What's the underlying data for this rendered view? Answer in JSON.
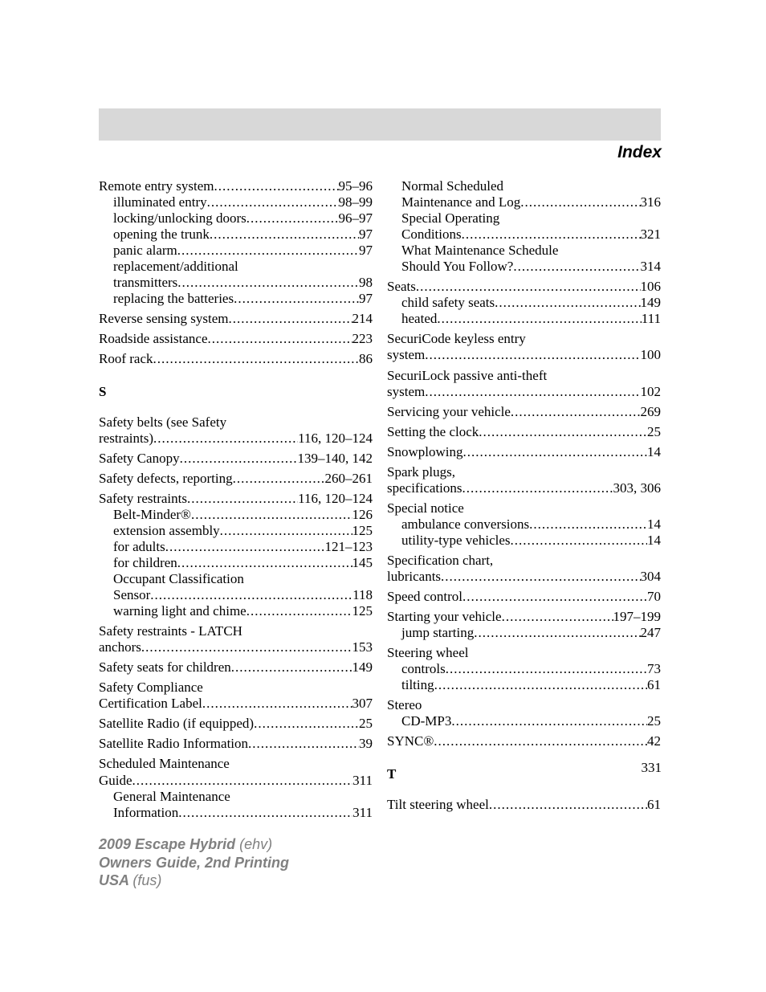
{
  "title": "Index",
  "page_number": "331",
  "footer": {
    "line1_bold": "2009 Escape Hybrid ",
    "line1_rest": "(ehv)",
    "line2": "Owners Guide, 2nd Printing",
    "line3_bold": "USA ",
    "line3_rest": "(fus)"
  },
  "left_col": [
    {
      "type": "entry",
      "block": true,
      "lines": [
        {
          "txt": "Remote entry system ",
          "pg": "95–96",
          "sub": false
        },
        {
          "txt": "illuminated entry ",
          "pg": "98–99",
          "sub": true
        },
        {
          "txt": "locking/unlocking doors ",
          "pg": "96–97",
          "sub": true
        },
        {
          "txt": "opening the trunk ",
          "pg": "97",
          "sub": true
        },
        {
          "txt": "panic alarm ",
          "pg": "97",
          "sub": true
        },
        {
          "txt": "replacement/additional",
          "nopg": true,
          "sub": true
        },
        {
          "txt": "transmitters ",
          "pg": "98",
          "sub": true
        },
        {
          "txt": "replacing the batteries ",
          "pg": "97",
          "sub": true
        }
      ]
    },
    {
      "type": "entry",
      "block": true,
      "lines": [
        {
          "txt": "Reverse sensing system ",
          "pg": "214",
          "sub": false
        }
      ]
    },
    {
      "type": "entry",
      "block": true,
      "lines": [
        {
          "txt": "Roadside assistance ",
          "pg": "223",
          "sub": false
        }
      ]
    },
    {
      "type": "entry",
      "block": true,
      "lines": [
        {
          "txt": "Roof rack ",
          "pg": "86",
          "sub": false
        }
      ]
    },
    {
      "type": "section",
      "letter": "S"
    },
    {
      "type": "entry",
      "block": true,
      "lines": [
        {
          "txt": "Safety belts (see Safety",
          "nopg": true,
          "sub": false
        },
        {
          "txt": "restraints) ",
          "pg": "116, 120–124",
          "sub": false
        }
      ]
    },
    {
      "type": "entry",
      "block": true,
      "lines": [
        {
          "txt": "Safety Canopy ",
          "pg": "139–140, 142",
          "sub": false
        }
      ]
    },
    {
      "type": "entry",
      "block": true,
      "lines": [
        {
          "txt": "Safety defects, reporting ",
          "pg": "260–261",
          "sub": false,
          "tight": true
        }
      ]
    },
    {
      "type": "entry",
      "block": true,
      "lines": [
        {
          "txt": "Safety restraints ",
          "pg": "116, 120–124",
          "sub": false
        },
        {
          "txt": "Belt-Minder® ",
          "pg": "126",
          "sub": true
        },
        {
          "txt": "extension assembly ",
          "pg": "125",
          "sub": true
        },
        {
          "txt": "for adults ",
          "pg": "121–123",
          "sub": true
        },
        {
          "txt": "for children ",
          "pg": "145",
          "sub": true
        },
        {
          "txt": "Occupant Classification",
          "nopg": true,
          "sub": true
        },
        {
          "txt": "Sensor ",
          "pg": "118",
          "sub": true
        },
        {
          "txt": "warning light and chime ",
          "pg": "125",
          "sub": true
        }
      ]
    },
    {
      "type": "entry",
      "block": true,
      "lines": [
        {
          "txt": "Safety restraints - LATCH",
          "nopg": true,
          "sub": false
        },
        {
          "txt": "anchors ",
          "pg": "153",
          "sub": false
        }
      ]
    },
    {
      "type": "entry",
      "block": true,
      "lines": [
        {
          "txt": "Safety seats for children ",
          "pg": "149",
          "sub": false
        }
      ]
    },
    {
      "type": "entry",
      "block": true,
      "lines": [
        {
          "txt": "Safety Compliance",
          "nopg": true,
          "sub": false
        },
        {
          "txt": "Certification Label ",
          "pg": "307",
          "sub": false
        }
      ]
    },
    {
      "type": "entry",
      "block": true,
      "lines": [
        {
          "txt": "Satellite Radio (if equipped) ",
          "pg": "25",
          "sub": false
        }
      ]
    },
    {
      "type": "entry",
      "block": true,
      "lines": [
        {
          "txt": "Satellite Radio Information ",
          "pg": "39",
          "sub": false
        }
      ]
    },
    {
      "type": "entry",
      "block": true,
      "lines": [
        {
          "txt": "Scheduled Maintenance",
          "nopg": true,
          "sub": false
        },
        {
          "txt": "Guide ",
          "pg": "311",
          "sub": false
        },
        {
          "txt": "General Maintenance",
          "nopg": true,
          "sub": true
        },
        {
          "txt": "Information ",
          "pg": "311",
          "sub": true
        }
      ]
    }
  ],
  "right_col": [
    {
      "type": "entry",
      "block": true,
      "lines": [
        {
          "txt": "Normal Scheduled",
          "nopg": true,
          "sub": true
        },
        {
          "txt": "Maintenance and Log ",
          "pg": "316",
          "sub": true
        },
        {
          "txt": "Special Operating",
          "nopg": true,
          "sub": true
        },
        {
          "txt": "Conditions ",
          "pg": "321",
          "sub": true
        },
        {
          "txt": "What Maintenance Schedule",
          "nopg": true,
          "sub": true
        },
        {
          "txt": "Should You Follow? ",
          "pg": "314",
          "sub": true
        }
      ]
    },
    {
      "type": "entry",
      "block": true,
      "lines": [
        {
          "txt": "Seats ",
          "pg": "106",
          "sub": false
        },
        {
          "txt": "child safety seats ",
          "pg": "149",
          "sub": true
        },
        {
          "txt": "heated ",
          "pg": "111",
          "sub": true
        }
      ]
    },
    {
      "type": "entry",
      "block": true,
      "lines": [
        {
          "txt": "SecuriCode keyless entry",
          "nopg": true,
          "sub": false
        },
        {
          "txt": "system ",
          "pg": "100",
          "sub": false
        }
      ]
    },
    {
      "type": "entry",
      "block": true,
      "lines": [
        {
          "txt": "SecuriLock passive anti-theft",
          "nopg": true,
          "sub": false
        },
        {
          "txt": "system ",
          "pg": "102",
          "sub": false
        }
      ]
    },
    {
      "type": "entry",
      "block": true,
      "lines": [
        {
          "txt": "Servicing your vehicle ",
          "pg": "269",
          "sub": false
        }
      ]
    },
    {
      "type": "entry",
      "block": true,
      "lines": [
        {
          "txt": "Setting the clock ",
          "pg": "25",
          "sub": false
        }
      ]
    },
    {
      "type": "entry",
      "block": true,
      "lines": [
        {
          "txt": "Snowplowing ",
          "pg": "14",
          "sub": false
        }
      ]
    },
    {
      "type": "entry",
      "block": true,
      "lines": [
        {
          "txt": "Spark plugs,",
          "nopg": true,
          "sub": false
        },
        {
          "txt": "specifications ",
          "pg": "303, 306",
          "sub": false
        }
      ]
    },
    {
      "type": "entry",
      "block": true,
      "lines": [
        {
          "txt": "Special notice",
          "nopg": true,
          "sub": false
        },
        {
          "txt": "ambulance conversions ",
          "pg": "14",
          "sub": true
        },
        {
          "txt": "utility-type vehicles ",
          "pg": "14",
          "sub": true
        }
      ]
    },
    {
      "type": "entry",
      "block": true,
      "lines": [
        {
          "txt": "Specification chart,",
          "nopg": true,
          "sub": false
        },
        {
          "txt": "lubricants ",
          "pg": "304",
          "sub": false
        }
      ]
    },
    {
      "type": "entry",
      "block": true,
      "lines": [
        {
          "txt": "Speed control ",
          "pg": "70",
          "sub": false
        }
      ]
    },
    {
      "type": "entry",
      "block": true,
      "lines": [
        {
          "txt": "Starting your vehicle ",
          "pg": "197–199",
          "sub": false
        },
        {
          "txt": "jump starting ",
          "pg": "247",
          "sub": true
        }
      ]
    },
    {
      "type": "entry",
      "block": true,
      "lines": [
        {
          "txt": "Steering wheel",
          "nopg": true,
          "sub": false
        },
        {
          "txt": "controls ",
          "pg": "73",
          "sub": true
        },
        {
          "txt": "tilting ",
          "pg": "61",
          "sub": true
        }
      ]
    },
    {
      "type": "entry",
      "block": true,
      "lines": [
        {
          "txt": "Stereo",
          "nopg": true,
          "sub": false
        },
        {
          "txt": "CD-MP3 ",
          "pg": "25",
          "sub": true
        }
      ]
    },
    {
      "type": "entry",
      "block": true,
      "lines": [
        {
          "txt": "SYNC® ",
          "pg": "42",
          "sub": false
        }
      ]
    },
    {
      "type": "section",
      "letter": "T"
    },
    {
      "type": "entry",
      "block": true,
      "lines": [
        {
          "txt": "Tilt steering wheel ",
          "pg": "61",
          "sub": false
        }
      ]
    }
  ]
}
